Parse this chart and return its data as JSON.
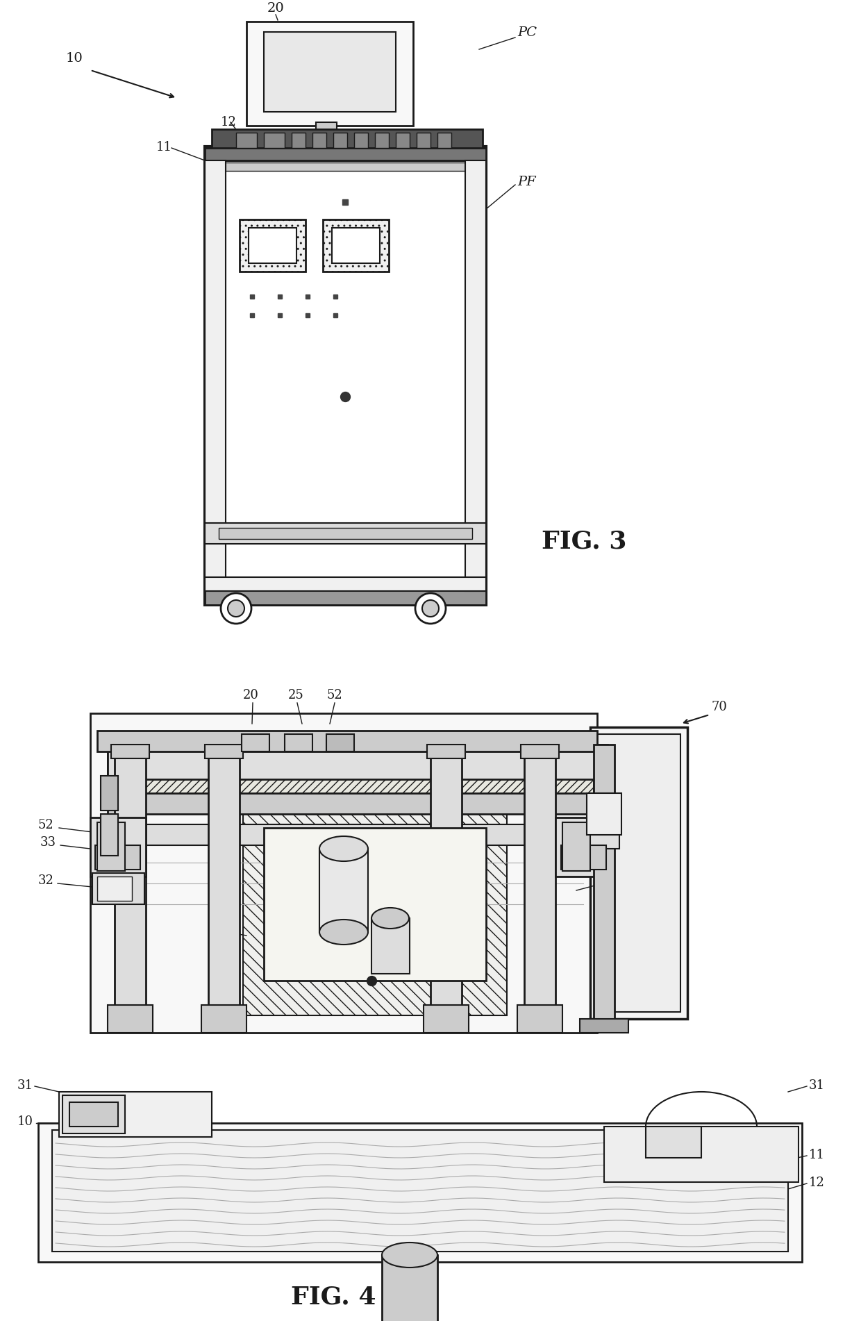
{
  "bg_color": "#ffffff",
  "lc": "#1a1a1a",
  "fig3_title": "FIG. 3",
  "fig4_title": "FIG. 4",
  "gray1": "#f0f0f0",
  "gray2": "#e0e0e0",
  "gray3": "#cccccc",
  "gray4": "#aaaaaa",
  "gray5": "#888888",
  "gray6": "#666666"
}
